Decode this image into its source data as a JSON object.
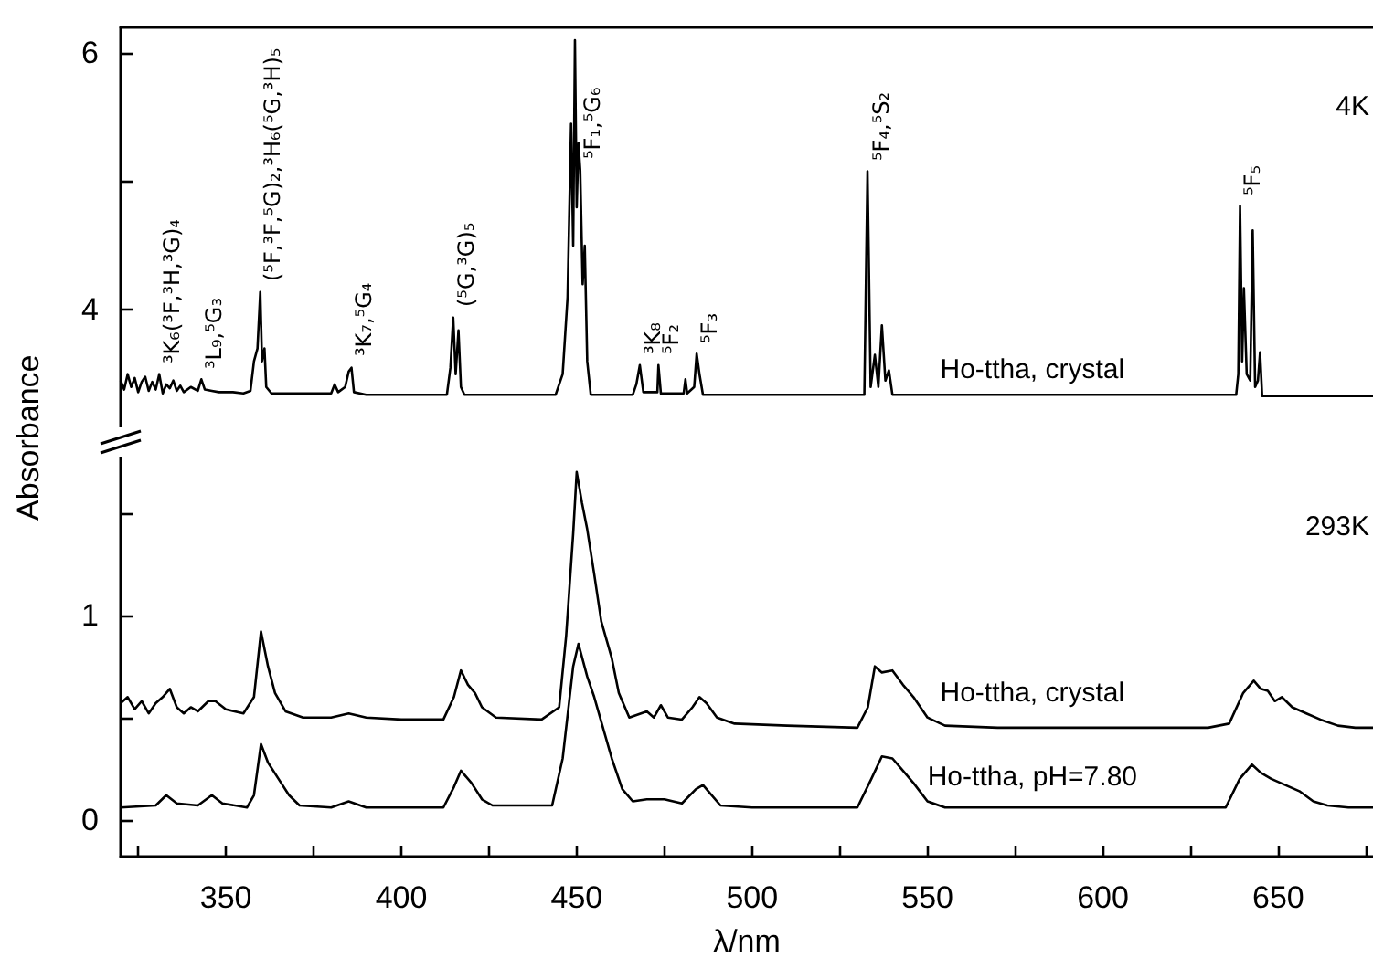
{
  "chart_data": [
    {
      "type": "line",
      "xlim": [
        320,
        677
      ],
      "ylim": [
        3.0,
        6.2
      ],
      "tick_labels": "y",
      "marker": "none",
      "line_style": "solid",
      "yticks": [
        4,
        {
          "value": 5,
          "label": null
        },
        6
      ],
      "annotations": [
        "4K",
        {
          "text": "³K₆(³F,³H,³G)₄",
          "x": 331,
          "y": 3.5
        },
        {
          "text": "³L₉,⁵G₃",
          "x": 343,
          "y": 3.46
        },
        {
          "text": "(⁵F,³F,⁵G)₂,³H₆(⁵G,³H)₅",
          "x": 359.8,
          "y": 4.14
        },
        {
          "text": "³K₇,⁵G₄",
          "x": 385.8,
          "y": 3.55
        },
        {
          "text": "(⁵G,³G)₅",
          "x": 414.8,
          "y": 3.94
        },
        {
          "text": "⁵F₁,⁵G₆",
          "x": 451,
          "y": 5.09
        },
        {
          "text": "³K₈",
          "x": 468,
          "y": 3.57
        },
        {
          "text": "⁵F₂",
          "x": 473.3,
          "y": 3.57
        },
        {
          "text": "⁵F₃",
          "x": 484.2,
          "y": 3.66
        },
        {
          "text": "⁵F₄,⁵S₂",
          "x": 532.9,
          "y": 5.08
        },
        {
          "text": "⁵F₅",
          "x": 639.1,
          "y": 4.81
        }
      ],
      "series": [
        {
          "name": "Ho-ttha, crystal",
          "color": "#000000",
          "x": [
            320,
            321,
            322,
            323,
            324,
            325,
            326,
            327,
            328,
            329,
            330,
            331,
            332,
            333,
            334,
            335,
            336,
            337,
            338,
            340,
            342,
            343,
            344,
            346,
            348,
            352,
            355,
            357,
            358,
            359,
            359.8,
            360.3,
            361,
            361.5,
            363,
            380,
            381,
            382,
            384,
            385,
            385.8,
            386.5,
            390,
            413,
            414,
            414.8,
            415.5,
            416.3,
            417,
            418,
            444,
            446,
            447.4,
            448.4,
            449,
            449.5,
            450,
            450.5,
            451,
            451.7,
            452.3,
            453,
            454,
            466,
            467,
            468,
            469,
            473,
            473.3,
            474,
            480.5,
            481,
            481.5,
            483.5,
            484.2,
            485,
            486,
            532,
            532.9,
            533.8,
            535,
            536,
            537,
            538,
            539,
            540,
            638,
            638.6,
            639.1,
            639.7,
            640.2,
            641,
            642,
            642.7,
            643.4,
            644.2,
            644.8,
            645.4,
            677
          ],
          "values": [
            3.45,
            3.38,
            3.5,
            3.4,
            3.47,
            3.36,
            3.44,
            3.48,
            3.37,
            3.44,
            3.38,
            3.5,
            3.35,
            3.42,
            3.39,
            3.45,
            3.37,
            3.41,
            3.36,
            3.4,
            3.37,
            3.46,
            3.38,
            3.37,
            3.36,
            3.36,
            3.35,
            3.37,
            3.6,
            3.7,
            4.14,
            3.6,
            3.7,
            3.4,
            3.35,
            3.35,
            3.42,
            3.36,
            3.4,
            3.52,
            3.55,
            3.36,
            3.34,
            3.34,
            3.55,
            3.94,
            3.5,
            3.84,
            3.4,
            3.34,
            3.34,
            3.5,
            4.1,
            5.45,
            4.5,
            6.1,
            4.8,
            5.3,
            5.09,
            4.2,
            4.5,
            3.6,
            3.34,
            3.34,
            3.42,
            3.57,
            3.36,
            3.36,
            3.57,
            3.35,
            3.35,
            3.46,
            3.35,
            3.4,
            3.66,
            3.5,
            3.34,
            3.34,
            5.08,
            3.4,
            3.65,
            3.4,
            3.88,
            3.45,
            3.53,
            3.34,
            3.34,
            3.5,
            4.81,
            3.6,
            4.17,
            3.5,
            3.45,
            4.62,
            3.4,
            3.45,
            3.67,
            3.33,
            3.33
          ]
        }
      ]
    },
    {
      "type": "line",
      "xlim": [
        320,
        677
      ],
      "ylim": [
        -0.18,
        1.82
      ],
      "marker": "none",
      "line_style": "solid",
      "xlabel": "λ/nm",
      "ylabel": "Absorbance",
      "xticks": [
        {
          "value": 325,
          "label": null
        },
        350,
        {
          "value": 375,
          "label": null
        },
        400,
        {
          "value": 425,
          "label": null
        },
        450,
        {
          "value": 475,
          "label": null
        },
        500,
        {
          "value": 525,
          "label": null
        },
        550,
        {
          "value": 575,
          "label": null
        },
        600,
        {
          "value": 625,
          "label": null
        },
        650,
        {
          "value": 675,
          "label": null
        }
      ],
      "yticks": [
        0,
        {
          "value": 0.5,
          "label": null
        },
        1,
        {
          "value": 1.5,
          "label": null
        }
      ],
      "annotations": [
        "293K"
      ],
      "series": [
        {
          "name": "Ho-ttha, crystal",
          "color": "#000000",
          "x": [
            320,
            322,
            324,
            326,
            328,
            330,
            332,
            334,
            336,
            338,
            340,
            342,
            345,
            347,
            350,
            355,
            358,
            360,
            362,
            364,
            367,
            372,
            380,
            385,
            390,
            400,
            412,
            415,
            417,
            419,
            421,
            423,
            427,
            440,
            445,
            447,
            449,
            450,
            451.5,
            453,
            455,
            457,
            460,
            462,
            465,
            470,
            472,
            474,
            476,
            480,
            483,
            485,
            487,
            490,
            495,
            510,
            530,
            533,
            535,
            537,
            540,
            543,
            546,
            550,
            555,
            570,
            600,
            630,
            636,
            640,
            643,
            645,
            647,
            649,
            651,
            654,
            658,
            662,
            667,
            672,
            677
          ],
          "values": [
            0.57,
            0.6,
            0.54,
            0.58,
            0.52,
            0.57,
            0.6,
            0.64,
            0.55,
            0.52,
            0.55,
            0.53,
            0.58,
            0.58,
            0.54,
            0.52,
            0.6,
            0.92,
            0.75,
            0.62,
            0.53,
            0.5,
            0.5,
            0.52,
            0.5,
            0.49,
            0.49,
            0.6,
            0.73,
            0.66,
            0.62,
            0.55,
            0.5,
            0.49,
            0.55,
            0.9,
            1.4,
            1.7,
            1.55,
            1.42,
            1.2,
            0.97,
            0.79,
            0.62,
            0.5,
            0.53,
            0.5,
            0.56,
            0.5,
            0.49,
            0.55,
            0.6,
            0.57,
            0.5,
            0.47,
            0.46,
            0.45,
            0.55,
            0.75,
            0.72,
            0.73,
            0.66,
            0.6,
            0.5,
            0.46,
            0.45,
            0.45,
            0.45,
            0.47,
            0.62,
            0.68,
            0.64,
            0.63,
            0.58,
            0.6,
            0.55,
            0.52,
            0.49,
            0.46,
            0.45,
            0.45
          ]
        },
        {
          "name": "Ho-ttha, pH=7.80",
          "color": "#000000",
          "x": [
            320,
            330,
            333,
            336,
            342,
            346,
            349,
            356,
            358,
            360,
            362,
            365,
            368,
            371,
            380,
            385,
            390,
            412,
            415,
            417,
            420,
            423,
            426,
            443,
            446,
            449,
            450.5,
            453,
            455,
            458,
            460,
            463,
            466,
            470,
            475,
            480,
            484,
            486,
            488,
            491,
            500,
            530,
            534,
            537,
            540,
            543,
            546,
            550,
            555,
            635,
            639,
            642.5,
            645,
            648,
            652,
            656,
            660,
            664,
            670,
            677
          ],
          "values": [
            0.06,
            0.07,
            0.12,
            0.08,
            0.07,
            0.12,
            0.08,
            0.06,
            0.12,
            0.37,
            0.28,
            0.2,
            0.12,
            0.07,
            0.06,
            0.09,
            0.06,
            0.06,
            0.16,
            0.24,
            0.18,
            0.1,
            0.07,
            0.07,
            0.3,
            0.75,
            0.86,
            0.7,
            0.6,
            0.42,
            0.3,
            0.15,
            0.09,
            0.1,
            0.1,
            0.08,
            0.15,
            0.17,
            0.13,
            0.07,
            0.06,
            0.06,
            0.2,
            0.31,
            0.3,
            0.24,
            0.18,
            0.09,
            0.06,
            0.06,
            0.2,
            0.27,
            0.23,
            0.2,
            0.17,
            0.14,
            0.09,
            0.07,
            0.06,
            0.06
          ]
        }
      ]
    }
  ]
}
